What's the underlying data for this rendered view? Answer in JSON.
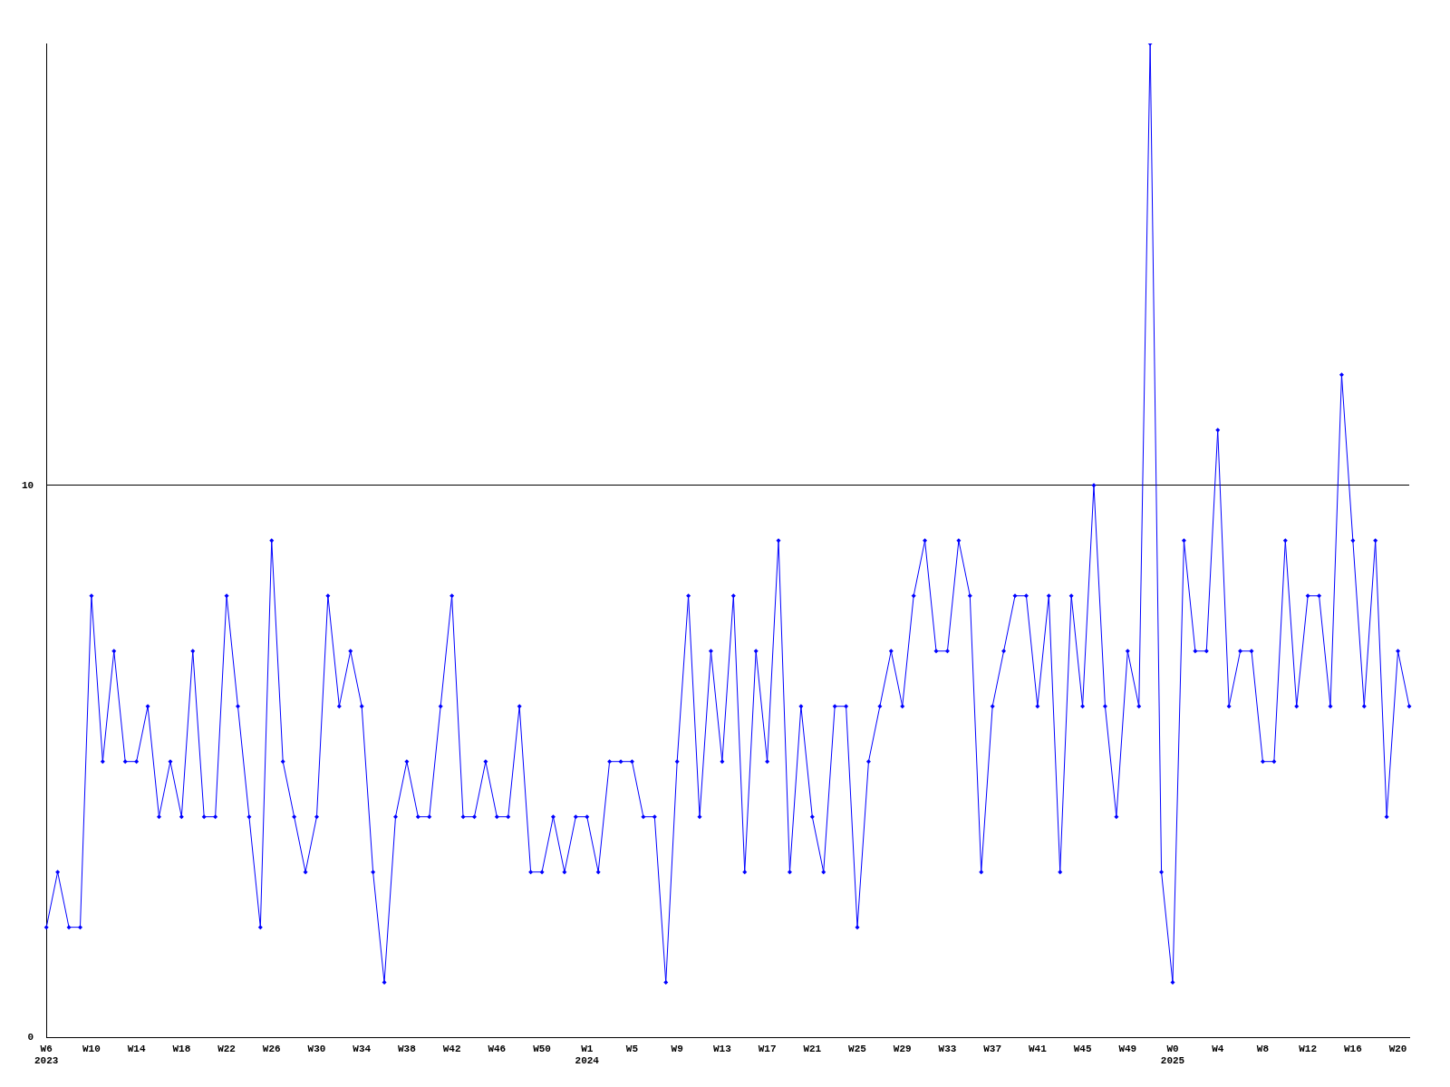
{
  "chart_data": {
    "type": "line",
    "categories": [
      "W6\n2023",
      null,
      null,
      null,
      "W10",
      null,
      null,
      null,
      "W14",
      null,
      null,
      null,
      "W18",
      null,
      null,
      null,
      "W22",
      null,
      null,
      null,
      "W26",
      null,
      null,
      null,
      "W30",
      null,
      null,
      null,
      "W34",
      null,
      null,
      null,
      "W38",
      null,
      null,
      null,
      "W42",
      null,
      null,
      null,
      "W46",
      null,
      null,
      null,
      "W50",
      null,
      null,
      null,
      "W1\n2024",
      null,
      null,
      null,
      "W5",
      null,
      null,
      null,
      "W9",
      null,
      null,
      null,
      "W13",
      null,
      null,
      null,
      "W17",
      null,
      null,
      null,
      "W21",
      null,
      null,
      null,
      "W25",
      null,
      null,
      null,
      "W29",
      null,
      null,
      null,
      "W33",
      null,
      null,
      null,
      "W37",
      null,
      null,
      null,
      "W41",
      null,
      null,
      null,
      "W45",
      null,
      null,
      null,
      "W49",
      null,
      null,
      null,
      "W0\n2025",
      null,
      null,
      null,
      "W4",
      null,
      null,
      null,
      "W8",
      null,
      null,
      null,
      "W12",
      null,
      null,
      null,
      "W16",
      null,
      null,
      null,
      "W20",
      null
    ],
    "series": [
      {
        "color": "#0000ff",
        "values": [
          2,
          3,
          2,
          2,
          8,
          5,
          7,
          5,
          5,
          6,
          4,
          5,
          4,
          7,
          4,
          4,
          8,
          6,
          4,
          2,
          9,
          5,
          4,
          3,
          4,
          8,
          6,
          7,
          6,
          3,
          1,
          4,
          5,
          4,
          4,
          6,
          8,
          4,
          4,
          5,
          4,
          4,
          6,
          3,
          3,
          4,
          3,
          4,
          4,
          3,
          5,
          5,
          5,
          4,
          4,
          1,
          5,
          8,
          4,
          7,
          5,
          8,
          3,
          7,
          5,
          9,
          3,
          6,
          4,
          3,
          6,
          6,
          2,
          5,
          6,
          7,
          6,
          8,
          9,
          7,
          7,
          9,
          8,
          3,
          6,
          7,
          8,
          8,
          6,
          8,
          3,
          8,
          6,
          10,
          6,
          4,
          7,
          6,
          18,
          3,
          1,
          9,
          7,
          7,
          11,
          6,
          7,
          7,
          5,
          5,
          9,
          6,
          8,
          8,
          6,
          12,
          9,
          6,
          9,
          4,
          7,
          6
        ]
      }
    ],
    "ylim": [
      0,
      18
    ],
    "yticks": [
      0,
      10
    ],
    "grid": "y",
    "marker": "diamond",
    "line_style": "solid"
  }
}
